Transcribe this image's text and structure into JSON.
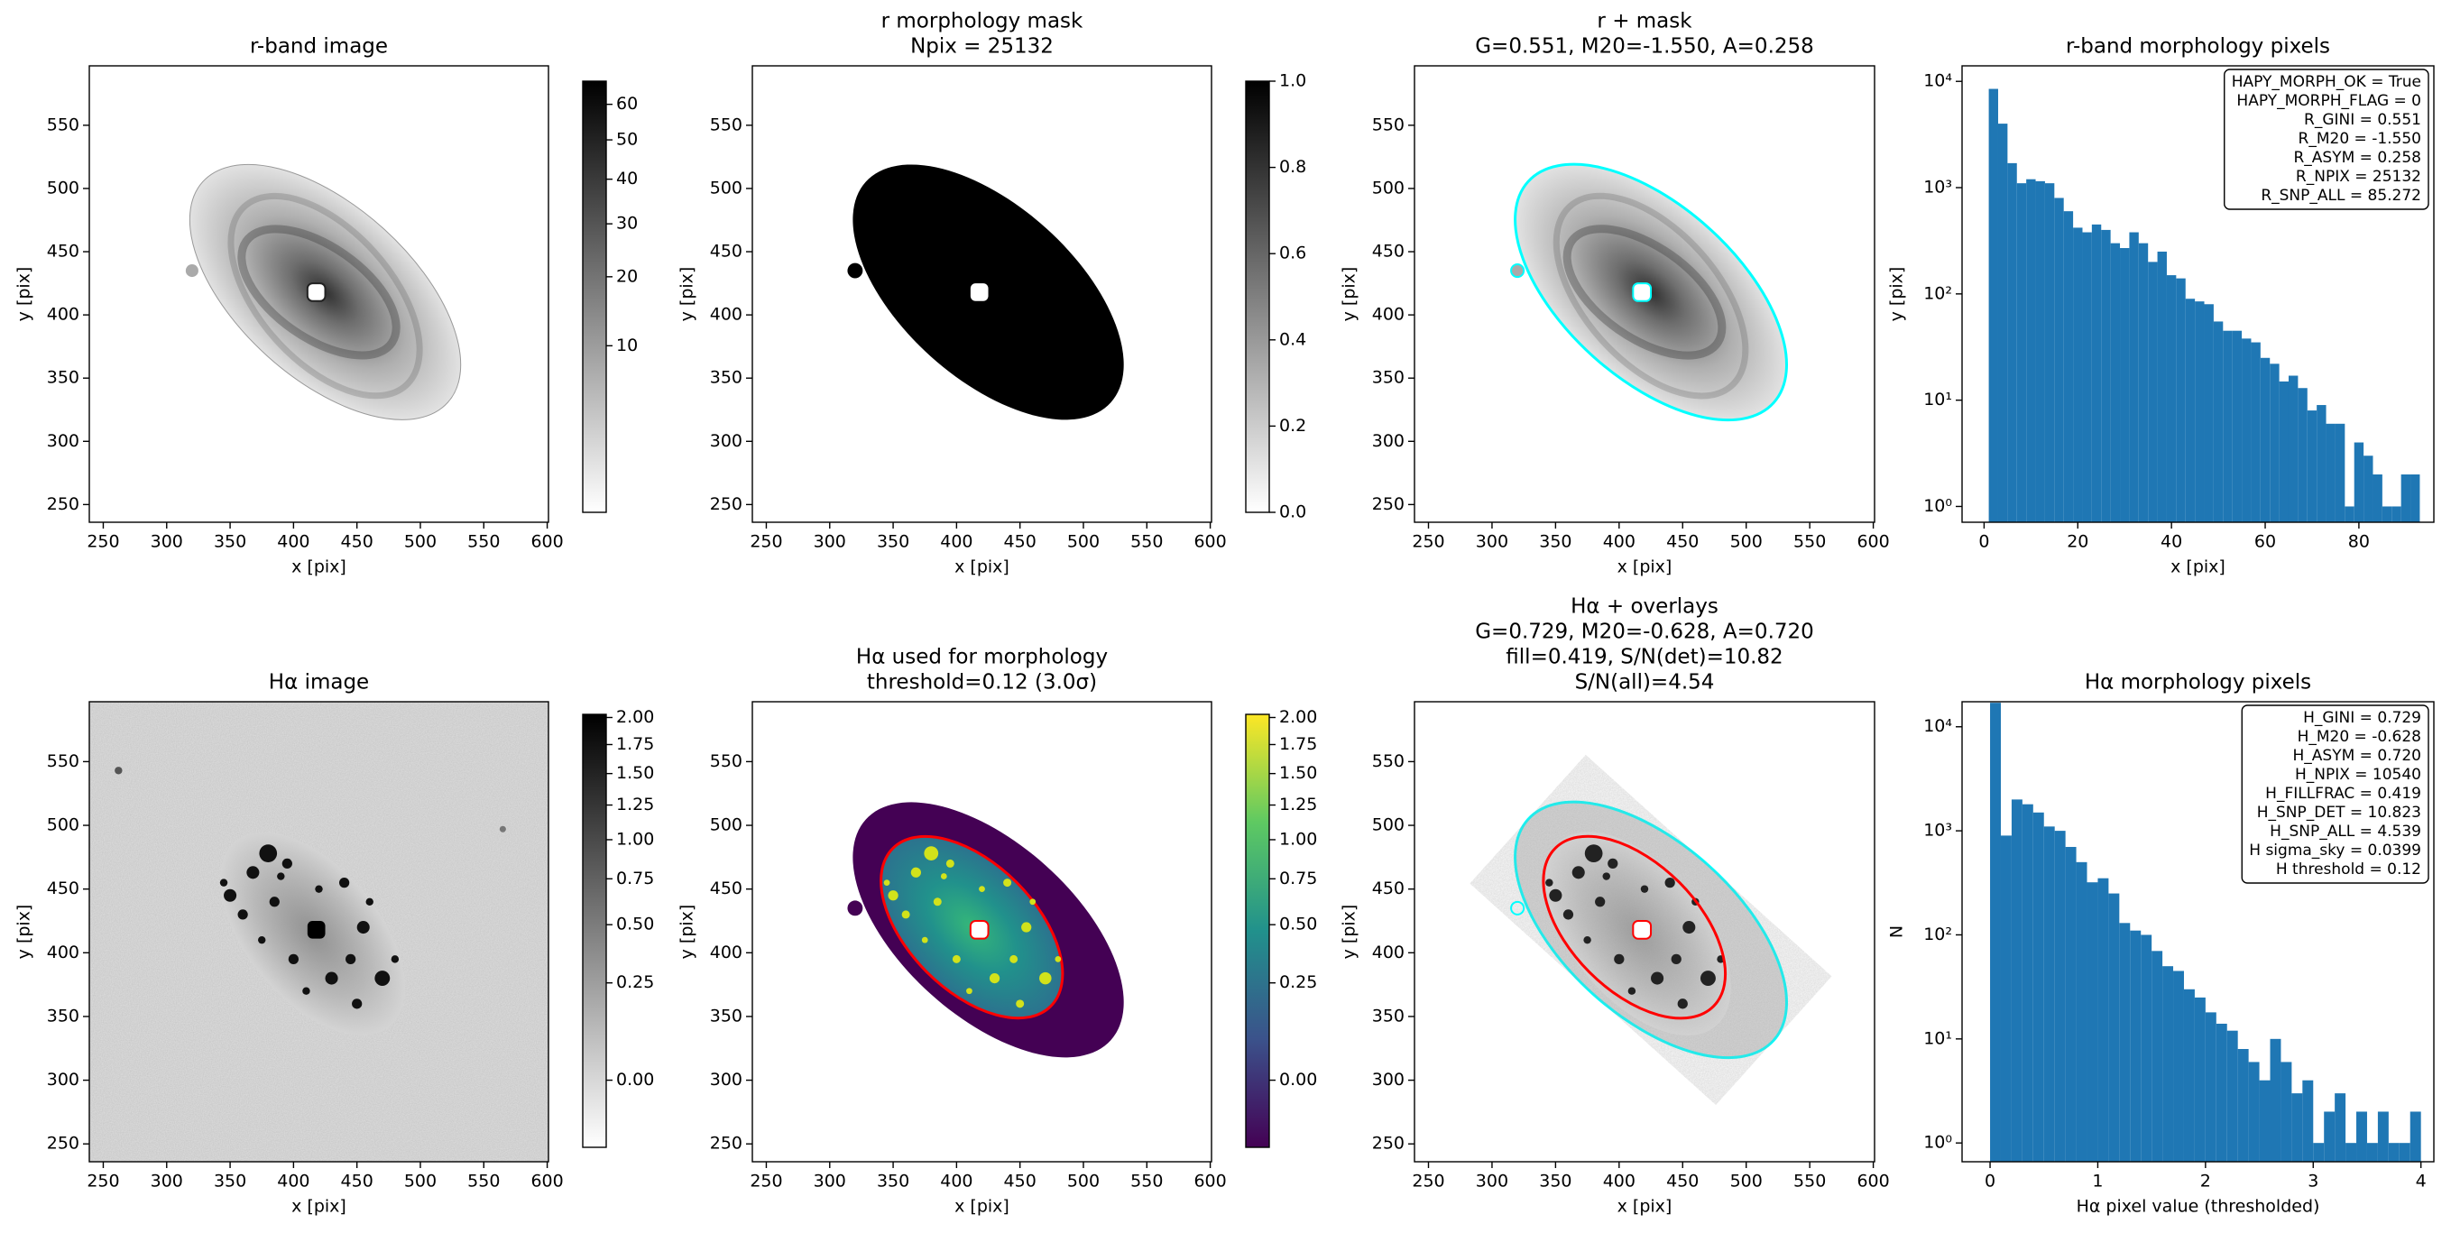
{
  "chart_data": [
    {
      "type": "image",
      "title": [
        "r-band image"
      ],
      "xlabel": "x [pix]",
      "ylabel": "y [pix]",
      "cmap": "gray_r",
      "xlim": [
        239,
        601
      ],
      "ylim": [
        236,
        597
      ],
      "xticks": [
        250,
        300,
        350,
        400,
        450,
        500,
        550,
        600
      ],
      "yticks": [
        250,
        300,
        350,
        400,
        450,
        500,
        550
      ],
      "colorbar": {
        "lim": [
          0,
          67
        ],
        "scale": "sqrt",
        "ticks": [
          10,
          20,
          30,
          40,
          50,
          60
        ]
      }
    },
    {
      "type": "image",
      "title": [
        "r morphology mask",
        "Npix = 25132"
      ],
      "xlabel": "x [pix]",
      "ylabel": "y [pix]",
      "cmap": "gray_r",
      "xlim": [
        239,
        601
      ],
      "ylim": [
        236,
        597
      ],
      "xticks": [
        250,
        300,
        350,
        400,
        450,
        500,
        550,
        600
      ],
      "yticks": [
        250,
        300,
        350,
        400,
        450,
        500,
        550
      ],
      "colorbar": {
        "lim": [
          0,
          1
        ],
        "scale": "linear",
        "ticks": [
          {
            "value": 0,
            "label": "0.0"
          },
          0.2,
          0.4,
          0.6,
          0.8,
          {
            "value": 1,
            "label": "1.0"
          }
        ]
      }
    },
    {
      "type": "image",
      "title": [
        "r + mask",
        "G=0.551, M20=-1.550, A=0.258"
      ],
      "xlabel": "x [pix]",
      "ylabel": "y [pix]",
      "cmap": "gray_r",
      "contour_colors": [
        "cyan"
      ],
      "xlim": [
        239,
        601
      ],
      "ylim": [
        236,
        597
      ],
      "xticks": [
        250,
        300,
        350,
        400,
        450,
        500,
        550,
        600
      ],
      "yticks": [
        250,
        300,
        350,
        400,
        450,
        500,
        550
      ]
    },
    {
      "type": "histogram",
      "title": [
        "r-band morphology pixels"
      ],
      "xlabel": "x [pix]",
      "ylabel": "y [pix]",
      "color": "#1f77b4",
      "log_y": true,
      "bins": [
        1,
        3,
        5,
        7,
        9,
        11,
        13,
        15,
        17,
        19,
        21,
        23,
        25,
        27,
        29,
        31,
        33,
        35,
        37,
        39,
        41,
        43,
        45,
        47,
        49,
        51,
        53,
        55,
        57,
        59,
        61,
        63,
        65,
        67,
        69,
        71,
        73,
        75,
        77,
        79,
        81,
        83,
        85,
        87,
        89,
        91,
        93
      ],
      "values": [
        8500,
        4000,
        1700,
        1100,
        1200,
        1150,
        1100,
        800,
        600,
        420,
        380,
        450,
        400,
        300,
        270,
        380,
        300,
        200,
        250,
        150,
        140,
        90,
        85,
        80,
        55,
        45,
        45,
        38,
        35,
        25,
        22,
        15,
        17,
        13,
        8,
        9,
        6,
        6,
        1,
        4,
        3,
        2,
        1,
        1,
        2,
        2
      ],
      "xlim": [
        -4.7,
        96
      ],
      "ylim": [
        0.71,
        14000
      ],
      "xticks": [
        0,
        20,
        40,
        60,
        80
      ],
      "yticks": [
        {
          "value": 1,
          "label": "10⁰"
        },
        {
          "value": 10,
          "label": "10¹"
        },
        {
          "value": 100,
          "label": "10²"
        },
        {
          "value": 1000,
          "label": "10³"
        },
        {
          "value": 10000,
          "label": "10⁴"
        }
      ],
      "textbox": [
        "HAPY_MORPH_OK = True",
        "HAPY_MORPH_FLAG = 0",
        "R_GINI = 0.551",
        "R_M20 = -1.550",
        "R_ASYM = 0.258",
        "R_NPIX = 25132",
        "R_SNP_ALL = 85.272"
      ]
    },
    {
      "type": "image",
      "title": [
        "Hα image"
      ],
      "xlabel": "x [pix]",
      "ylabel": "y [pix]",
      "cmap": "gray_r",
      "xlim": [
        239,
        601
      ],
      "ylim": [
        236,
        597
      ],
      "xticks": [
        250,
        300,
        350,
        400,
        450,
        500,
        550,
        600
      ],
      "yticks": [
        250,
        300,
        350,
        400,
        450,
        500,
        550
      ],
      "colorbar": {
        "lim": [
          -0.05,
          2.03
        ],
        "scale": "sqrt",
        "ticks": [
          {
            "value": 0,
            "label": "0.00"
          },
          0.25,
          {
            "value": 0.5,
            "label": "0.50"
          },
          0.75,
          {
            "value": 1,
            "label": "1.00"
          },
          1.25,
          {
            "value": 1.5,
            "label": "1.50"
          },
          1.75,
          {
            "value": 2,
            "label": "2.00"
          }
        ]
      }
    },
    {
      "type": "image",
      "title": [
        "Hα used for morphology",
        "threshold=0.12 (3.0σ)"
      ],
      "xlabel": "x [pix]",
      "ylabel": "y [pix]",
      "cmap": "viridis",
      "contour_colors": [
        "red"
      ],
      "xlim": [
        239,
        601
      ],
      "ylim": [
        236,
        597
      ],
      "xticks": [
        250,
        300,
        350,
        400,
        450,
        500,
        550,
        600
      ],
      "yticks": [
        250,
        300,
        350,
        400,
        450,
        500,
        550
      ],
      "colorbar": {
        "lim": [
          -0.05,
          2.03
        ],
        "scale": "sqrt",
        "ticks": [
          {
            "value": 0,
            "label": "0.00"
          },
          0.25,
          {
            "value": 0.5,
            "label": "0.50"
          },
          0.75,
          {
            "value": 1,
            "label": "1.00"
          },
          1.25,
          {
            "value": 1.5,
            "label": "1.50"
          },
          1.75,
          {
            "value": 2,
            "label": "2.00"
          }
        ]
      }
    },
    {
      "type": "image",
      "title": [
        "Hα + overlays",
        "G=0.729, M20=-0.628, A=0.720",
        "fill=0.419, S/N(det)=10.82",
        "S/N(all)=4.54"
      ],
      "xlabel": "x [pix]",
      "ylabel": "y [pix]",
      "cmap": "gray_r",
      "contour_colors": [
        "cyan",
        "red"
      ],
      "xlim": [
        239,
        601
      ],
      "ylim": [
        236,
        597
      ],
      "xticks": [
        250,
        300,
        350,
        400,
        450,
        500,
        550,
        600
      ],
      "yticks": [
        250,
        300,
        350,
        400,
        450,
        500,
        550
      ]
    },
    {
      "type": "histogram",
      "title": [
        "Hα morphology pixels"
      ],
      "xlabel": "Hα pixel value (thresholded)",
      "ylabel": "N",
      "color": "#1f77b4",
      "log_y": true,
      "bins": [
        0,
        0.1,
        0.2,
        0.3,
        0.4,
        0.5,
        0.6,
        0.7,
        0.8,
        0.9,
        1,
        1.1,
        1.2,
        1.3,
        1.4,
        1.5,
        1.6,
        1.7,
        1.8,
        1.9,
        2,
        2.1,
        2.2,
        2.3,
        2.4,
        2.5,
        2.6,
        2.7,
        2.8,
        2.9,
        3,
        3.1,
        3.2,
        3.3,
        3.4,
        3.5,
        3.6,
        3.7,
        3.8,
        3.9,
        4
      ],
      "values": [
        17000,
        900,
        2000,
        1800,
        1500,
        1100,
        1000,
        700,
        500,
        320,
        350,
        250,
        130,
        110,
        100,
        70,
        50,
        45,
        30,
        25,
        18,
        14,
        12,
        8,
        6,
        4,
        10,
        6,
        3,
        4,
        1,
        2,
        3,
        1,
        2,
        1,
        2,
        1,
        1,
        2
      ],
      "xlim": [
        -0.26,
        4.12
      ],
      "ylim": [
        0.66,
        17400
      ],
      "xticks": [
        0,
        1,
        2,
        3,
        4
      ],
      "yticks": [
        {
          "value": 1,
          "label": "10⁰"
        },
        {
          "value": 10,
          "label": "10¹"
        },
        {
          "value": 100,
          "label": "10²"
        },
        {
          "value": 1000,
          "label": "10³"
        },
        {
          "value": 10000,
          "label": "10⁴"
        }
      ],
      "textbox": [
        "H_GINI = 0.729",
        "H_M20 = -0.628",
        "H_ASYM = 0.720",
        "H_NPIX = 10540",
        "H_FILLFRAC = 0.419",
        "H_SNP_DET = 10.823",
        "H_SNP_ALL = 4.539",
        "H sigma_sky = 0.0399",
        "H threshold = 0.12"
      ]
    }
  ]
}
